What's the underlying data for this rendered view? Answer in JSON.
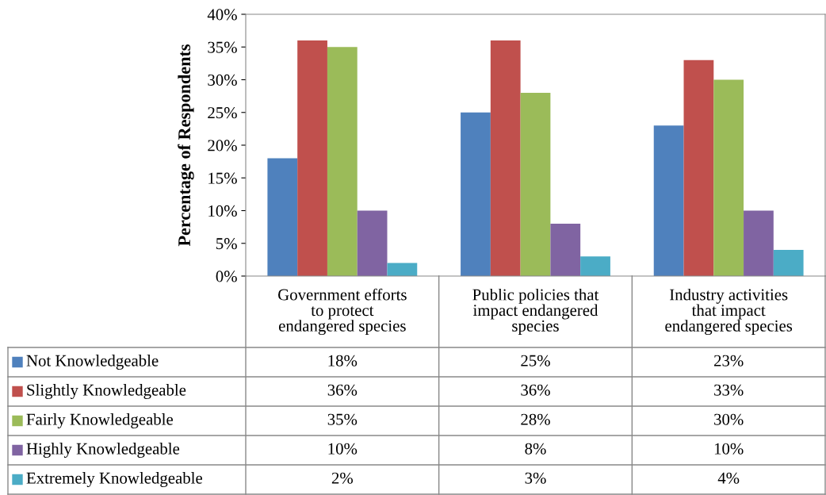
{
  "chart_data": {
    "type": "bar",
    "ylabel": "Percentage of Respondents",
    "categories": [
      "Government efforts\nto protect\nendangered species",
      "Public policies that\nimpact endangered\nspecies",
      "Industry activities\nthat impact\nendangered species"
    ],
    "series": [
      {
        "name": "Not Knowledgeable",
        "color": "#4f81bd",
        "values": [
          18,
          25,
          23
        ],
        "value_labels": [
          "18%",
          "25%",
          "23%"
        ]
      },
      {
        "name": "Slightly Knowledgeable",
        "color": "#c0504d",
        "values": [
          36,
          36,
          33
        ],
        "value_labels": [
          "36%",
          "36%",
          "33%"
        ]
      },
      {
        "name": "Fairly Knowledgeable",
        "color": "#9bbb59",
        "values": [
          35,
          28,
          30
        ],
        "value_labels": [
          "35%",
          "28%",
          "30%"
        ]
      },
      {
        "name": "Highly Knowledgeable",
        "color": "#8064a2",
        "values": [
          10,
          8,
          10
        ],
        "value_labels": [
          "10%",
          "8%",
          "10%"
        ]
      },
      {
        "name": "Extremely Knowledgeable",
        "color": "#4bacc6",
        "values": [
          2,
          3,
          4
        ],
        "value_labels": [
          "2%",
          "3%",
          "4%"
        ]
      }
    ],
    "ylim": [
      0,
      40
    ],
    "yticks": [
      {
        "value": 0,
        "label": "0%"
      },
      {
        "value": 5,
        "label": "5%"
      },
      {
        "value": 10,
        "label": "10%"
      },
      {
        "value": 15,
        "label": "15%"
      },
      {
        "value": 20,
        "label": "20%"
      },
      {
        "value": 25,
        "label": "25%"
      },
      {
        "value": 30,
        "label": "30%"
      },
      {
        "value": 35,
        "label": "35%"
      },
      {
        "value": 40,
        "label": "40%"
      }
    ],
    "grid": false,
    "legend": "bottom"
  }
}
